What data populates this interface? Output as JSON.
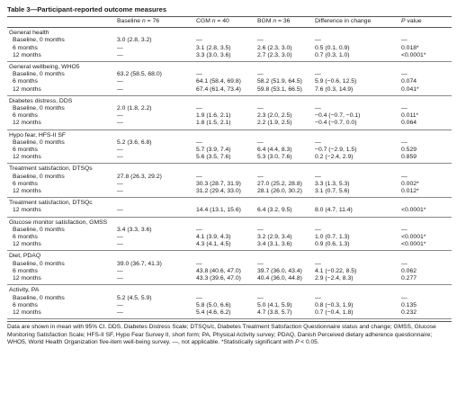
{
  "title": "Table 3—Participant-reported outcome measures",
  "headers": {
    "measure": "",
    "baseline": "Baseline n = 76",
    "cgm": "CGM n = 40",
    "bgm": "BGM n = 36",
    "diff": "Difference in change",
    "p": "P value"
  },
  "groups": [
    {
      "name": "General health",
      "rows": [
        {
          "label": "Baseline, 0 months",
          "baseline": "3.0 (2.8, 3.2)",
          "cgm": "—",
          "bgm": "—",
          "diff": "—",
          "p": "—"
        },
        {
          "label": "6 months",
          "baseline": "—",
          "cgm": "3.1 (2.8, 3.5)",
          "bgm": "2.6 (2.3, 3.0)",
          "diff": "0.5 (0.1, 0.9)",
          "p": "0.018*"
        },
        {
          "label": "12 months",
          "baseline": "—",
          "cgm": "3.3 (3.0, 3.6)",
          "bgm": "2.7 (2.3, 3.0)",
          "diff": "0.7 (0.3, 1.0)",
          "p": "<0.0001*"
        }
      ]
    },
    {
      "name": "General wellbeing, WHO5",
      "rows": [
        {
          "label": "Baseline, 0 months",
          "baseline": "63.2 (58.5, 68.0)",
          "cgm": "—",
          "bgm": "—",
          "diff": "—",
          "p": "—"
        },
        {
          "label": "6 months",
          "baseline": "—",
          "cgm": "64.1 (58.4, 69.8)",
          "bgm": "58.2 (51.9, 64.5)",
          "diff": "5.9 (−0.6, 12.5)",
          "p": "0.074"
        },
        {
          "label": "12 months",
          "baseline": "—",
          "cgm": "67.4 (61.4, 73.4)",
          "bgm": "59.8 (53.1, 66.5)",
          "diff": "7.6 (0.3, 14.9)",
          "p": "0.041*"
        }
      ]
    },
    {
      "name": "Diabetes distress, DDS",
      "rows": [
        {
          "label": "Baseline, 0 months",
          "baseline": "2.0 (1.8, 2.2)",
          "cgm": "—",
          "bgm": "—",
          "diff": "—",
          "p": "—"
        },
        {
          "label": "6 months",
          "baseline": "—",
          "cgm": "1.9 (1.6, 2.1)",
          "bgm": "2.3 (2.0, 2.5)",
          "diff": "−0.4 (−0.7, −0.1)",
          "p": "0.011*"
        },
        {
          "label": "12 months",
          "baseline": "—",
          "cgm": "1.8 (1.5, 2.1)",
          "bgm": "2.2 (1.9, 2.5)",
          "diff": "−0.4 (−0.7, 0.0)",
          "p": "0.064"
        }
      ]
    },
    {
      "name": "Hypo fear, HFS-II SF",
      "rows": [
        {
          "label": "Baseline, 0 months",
          "baseline": "5.2 (3.6, 6.8)",
          "cgm": "—",
          "bgm": "—",
          "diff": "—",
          "p": "—"
        },
        {
          "label": "6 months",
          "baseline": "—",
          "cgm": "5.7 (3.9, 7.4)",
          "bgm": "6.4 (4.4, 8.3)",
          "diff": "−0.7 (−2.9, 1.5)",
          "p": "0.529"
        },
        {
          "label": "12 months",
          "baseline": "—",
          "cgm": "5.6 (3.5, 7.6)",
          "bgm": "5.3 (3.0, 7.6)",
          "diff": "0.2 (−2.4, 2.9)",
          "p": "0.859"
        }
      ]
    },
    {
      "name": "Treatment satisfaction, DTSQs",
      "rows": [
        {
          "label": "Baseline, 0 months",
          "baseline": "27.8 (26.3, 29.2)",
          "cgm": "—",
          "bgm": "—",
          "diff": "—",
          "p": "—"
        },
        {
          "label": "6 months",
          "baseline": "—",
          "cgm": "30.3 (28.7, 31.9)",
          "bgm": "27.0 (25.2, 28.8)",
          "diff": "3.3 (1.3, 5.3)",
          "p": "0.002*"
        },
        {
          "label": "12 months",
          "baseline": "—",
          "cgm": "31.2 (29.4, 33.0)",
          "bgm": "28.1 (26.0, 30.2)",
          "diff": "3.1 (0.7, 5.6)",
          "p": "0.012*"
        }
      ]
    },
    {
      "name": "Treatment satisfaction, DTSQc",
      "rows": [
        {
          "label": "12 months",
          "baseline": "—",
          "cgm": "14.4 (13.1, 15.6)",
          "bgm": "6.4 (3.2, 9.5)",
          "diff": "8.0 (4.7, 11.4)",
          "p": "<0.0001*"
        }
      ]
    },
    {
      "name": "Glucose monitor satisfaction, GMSS",
      "rows": [
        {
          "label": "Baseline, 0 months",
          "baseline": "3.4 (3.3, 3.6)",
          "cgm": "—",
          "bgm": "—",
          "diff": "—",
          "p": "—"
        },
        {
          "label": "6 months",
          "baseline": "—",
          "cgm": "4.1 (3.9, 4.3)",
          "bgm": "3.2 (2.9, 3.4)",
          "diff": "1.0 (0.7, 1.3)",
          "p": "<0.0001*"
        },
        {
          "label": "12 months",
          "baseline": "—",
          "cgm": "4.3 (4.1, 4.5)",
          "bgm": "3.4 (3.1, 3.6)",
          "diff": "0.9 (0.6, 1.3)",
          "p": "<0.0001*"
        }
      ]
    },
    {
      "name": "Diet, PDAQ",
      "rows": [
        {
          "label": "Baseline, 0 months",
          "baseline": "39.0 (36.7, 41.3)",
          "cgm": "—",
          "bgm": "—",
          "diff": "—",
          "p": "—"
        },
        {
          "label": "6 months",
          "baseline": "—",
          "cgm": "43.8 (40.6, 47.0)",
          "bgm": "39.7 (36.0, 43.4)",
          "diff": "4.1 (−0.22, 8.5)",
          "p": "0.062"
        },
        {
          "label": "12 months",
          "baseline": "—",
          "cgm": "43.3 (39.6, 47.0)",
          "bgm": "40.4 (36.0, 44.8)",
          "diff": "2.9 (−2.4, 8.3)",
          "p": "0.277"
        }
      ]
    },
    {
      "name": "Activity, PA",
      "rows": [
        {
          "label": "Baseline, 0 months",
          "baseline": "5.2 (4.5, 5.9)",
          "cgm": "—",
          "bgm": "—",
          "diff": "—",
          "p": "—"
        },
        {
          "label": "6 months",
          "baseline": "—",
          "cgm": "5.8 (5.0, 6.6)",
          "bgm": "5.0 (4.1, 5.9)",
          "diff": "0.8 (−0.3, 1.9)",
          "p": "0.135"
        },
        {
          "label": "12 months",
          "baseline": "—",
          "cgm": "5.4 (4.6, 6.2)",
          "bgm": "4.7 (3.8, 5.7)",
          "diff": "0.7 (−0.4, 1.8)",
          "p": "0.232"
        }
      ]
    }
  ],
  "footnote": "Data are shown in mean with 95% CI. DDS, Diabetes Distress Scale; DTSQs/c, Diabetes Treatment Satisfaction Questionnaire status and change; GMSS, Glucose Monitoring Satisfaction Scale; HFS-II SF, Hypo Fear Survey II, short form; PA, Physical Activity survey; PDAQ, Danish Perceived dietary adherence questionnaire; WHO5, World Health Organization five-item well-being survey. —, not applicable. *Statistically significant with P < 0.05."
}
